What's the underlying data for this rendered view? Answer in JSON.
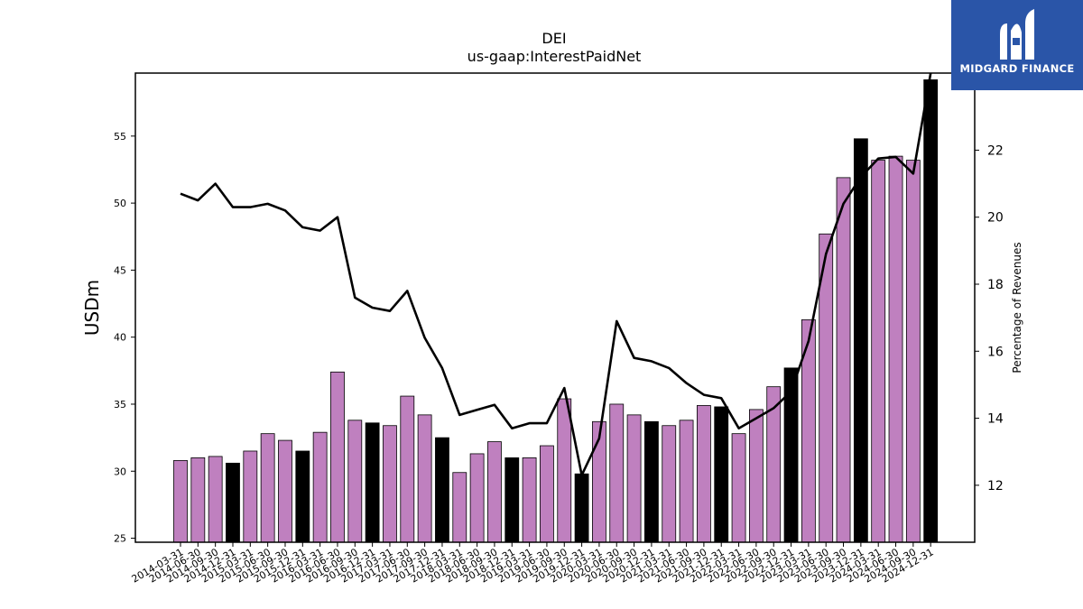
{
  "chart_data": {
    "type": "bar",
    "title": "DEI",
    "subtitle": "us-gaap:InterestPaidNet",
    "ylabel": "USDm",
    "y2label": "Percentage of Revenues",
    "ylim": [
      24.7,
      59.7
    ],
    "y2lim": [
      10.3,
      24.3
    ],
    "yticks": [
      25,
      30,
      35,
      40,
      45,
      50,
      55
    ],
    "y2ticks": [
      12,
      14,
      16,
      18,
      20,
      22
    ],
    "categories": [
      "2014-03-31",
      "2014-06-30",
      "2014-09-30",
      "2014-12-31",
      "2015-03-31",
      "2015-06-30",
      "2015-09-30",
      "2015-12-31",
      "2016-03-31",
      "2016-06-30",
      "2016-09-30",
      "2016-12-31",
      "2017-03-31",
      "2017-06-30",
      "2017-09-30",
      "2017-12-31",
      "2018-03-31",
      "2018-06-30",
      "2018-09-30",
      "2018-12-31",
      "2019-03-31",
      "2019-06-30",
      "2019-09-30",
      "2019-12-31",
      "2020-03-31",
      "2020-06-30",
      "2020-09-30",
      "2020-12-31",
      "2021-03-31",
      "2021-06-30",
      "2021-09-30",
      "2021-12-31",
      "2022-03-31",
      "2022-06-30",
      "2022-09-30",
      "2022-12-31",
      "2023-03-31",
      "2023-06-30",
      "2023-09-30",
      "2023-12-31",
      "2024-03-31",
      "2024-06-30",
      "2024-09-30",
      "2024-12-31"
    ],
    "series": [
      {
        "kind": "bar",
        "values": [
          30.8,
          31.0,
          31.1,
          30.6,
          31.5,
          32.8,
          32.3,
          31.5,
          32.9,
          37.4,
          33.8,
          33.6,
          33.4,
          35.6,
          34.2,
          32.5,
          29.9,
          31.3,
          32.2,
          31.0,
          31.0,
          31.9,
          35.4,
          29.8,
          33.7,
          35.0,
          34.2,
          33.7,
          33.4,
          33.8,
          34.9,
          34.8,
          32.8,
          34.6,
          36.3,
          37.7,
          41.3,
          47.7,
          51.9,
          54.8,
          53.2,
          53.5,
          53.2,
          59.2
        ]
      },
      {
        "kind": "line",
        "axis": "right",
        "values": [
          20.7,
          20.5,
          21.0,
          20.3,
          20.3,
          20.4,
          20.2,
          19.7,
          19.6,
          20.0,
          17.6,
          17.3,
          17.2,
          17.8,
          16.4,
          15.5,
          14.1,
          14.25,
          14.4,
          13.7,
          13.85,
          13.85,
          14.9,
          12.3,
          13.4,
          16.9,
          15.8,
          15.7,
          15.5,
          15.05,
          14.7,
          14.6,
          13.7,
          14.0,
          14.3,
          14.8,
          16.3,
          18.9,
          20.4,
          21.2,
          21.75,
          21.8,
          21.3,
          24.3
        ]
      }
    ],
    "bar_colors": {
      "regular": "#bf80bf",
      "year_end": "#000000"
    },
    "line_color": "#000000"
  },
  "logo": {
    "text": "MIDGARD FINANCE",
    "background": "#2a55a8"
  }
}
